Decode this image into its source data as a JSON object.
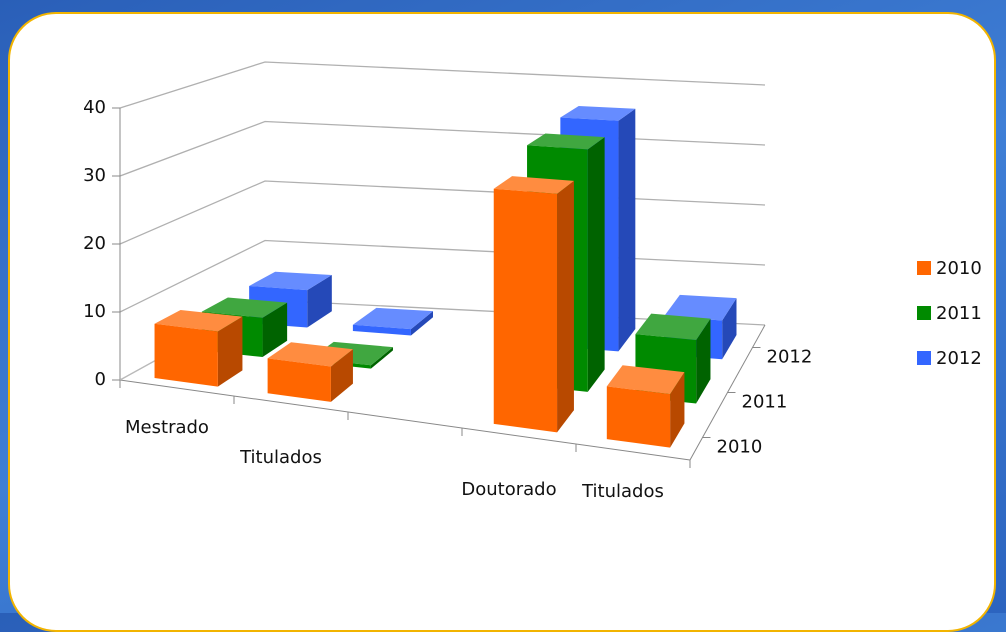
{
  "chart_data": {
    "type": "bar3d",
    "categories": [
      "Mestrado",
      "Titulados",
      null,
      "Doutorado",
      "Titulados"
    ],
    "series": [
      {
        "name": "2010",
        "color": "#ff6600",
        "values": [
          8,
          5,
          null,
          32,
          7
        ]
      },
      {
        "name": "2011",
        "color": "#008a00",
        "values": [
          6,
          0.5,
          null,
          35,
          9
        ]
      },
      {
        "name": "2012",
        "color": "#3366ff",
        "values": [
          6,
          1,
          null,
          36,
          6
        ]
      }
    ],
    "ylim": [
      0,
      40
    ],
    "yticks": [
      0,
      10,
      20,
      30,
      40
    ],
    "grid": true,
    "legend": "right"
  }
}
